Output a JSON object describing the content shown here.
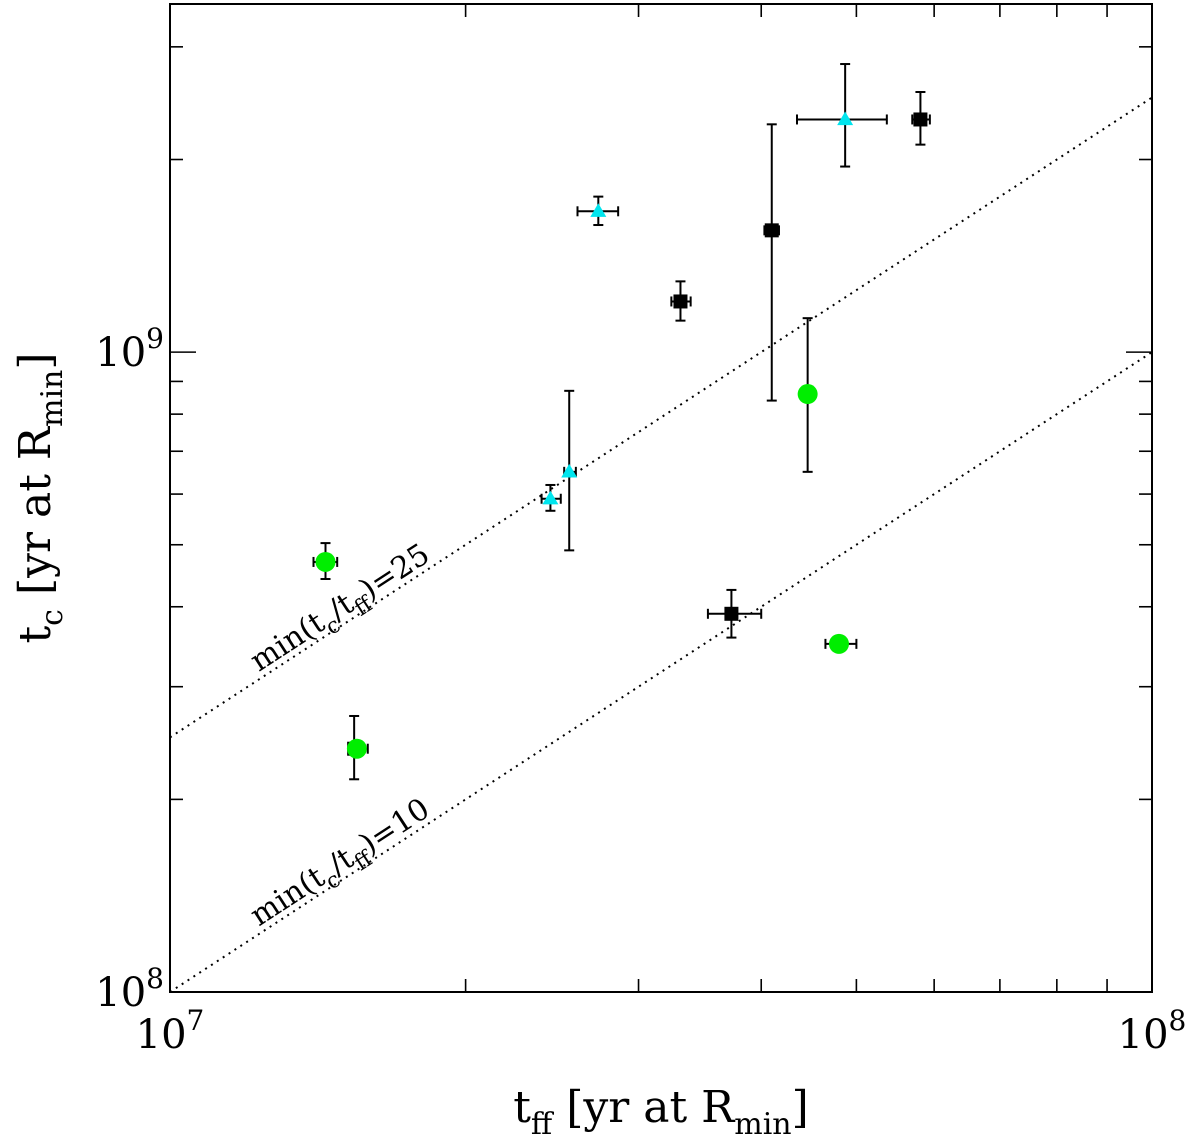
{
  "chart_data": {
    "type": "scatter",
    "xscale": "log",
    "yscale": "log",
    "xlim": [
      10000000,
      100000000
    ],
    "ylim": [
      100000000,
      3500000000
    ],
    "xlabel": {
      "main": "t",
      "sub": "ff",
      "rest": " [yr at R",
      "rsub": "min",
      "close": "]"
    },
    "ylabel": {
      "main": "t",
      "sub": "c",
      "rest": " [yr at R",
      "rsub": "min",
      "close": "]"
    },
    "x_tick_labels": [
      {
        "value": 10000000,
        "base": "10",
        "exp": "7"
      },
      {
        "value": 100000000,
        "base": "10",
        "exp": "8"
      }
    ],
    "y_tick_labels": [
      {
        "value": 100000000,
        "base": "10",
        "exp": "8"
      },
      {
        "value": 1000000000,
        "base": "10",
        "exp": "9"
      }
    ],
    "reference_lines": [
      {
        "ratio": 25,
        "label": {
          "pre": "min(t",
          "s1": "c",
          "mid": "/t",
          "s2": "ff",
          "post": ")=25"
        }
      },
      {
        "ratio": 10,
        "label": {
          "pre": "min(t",
          "s1": "c",
          "mid": "/t",
          "s2": "ff",
          "post": ")=10"
        }
      }
    ],
    "series": [
      {
        "name": "black squares",
        "marker": "square",
        "color": "#000000",
        "points": [
          {
            "x": 15400000,
            "y": 240000000,
            "xlo": 15200000,
            "xhi": 15700000,
            "ylo": 215000000,
            "yhi": 270000000
          },
          {
            "x": 33100000,
            "y": 1200000000,
            "xlo": 32400000,
            "xhi": 33900000,
            "ylo": 1120000000,
            "yhi": 1290000000
          },
          {
            "x": 37300000,
            "y": 390000000,
            "xlo": 35300000,
            "xhi": 40000000,
            "ylo": 358000000,
            "yhi": 425000000
          },
          {
            "x": 41000000,
            "y": 1550000000,
            "xlo": 40300000,
            "xhi": 41700000,
            "ylo": 840000000,
            "yhi": 2270000000
          },
          {
            "x": 58100000,
            "y": 2310000000,
            "xlo": 57000000,
            "xhi": 59400000,
            "ylo": 2110000000,
            "yhi": 2550000000
          }
        ]
      },
      {
        "name": "cyan triangles",
        "marker": "triangle",
        "color": "#00e5ee",
        "points": [
          {
            "x": 24400000,
            "y": 590000000,
            "xlo": 23900000,
            "xhi": 25000000,
            "ylo": 565000000,
            "yhi": 620000000
          },
          {
            "x": 25500000,
            "y": 650000000,
            "xlo": 25200000,
            "xhi": 25900000,
            "ylo": 490000000,
            "yhi": 870000000
          },
          {
            "x": 27300000,
            "y": 1660000000,
            "xlo": 26000000,
            "xhi": 28600000,
            "ylo": 1580000000,
            "yhi": 1750000000
          },
          {
            "x": 48700000,
            "y": 2310000000,
            "xlo": 43500000,
            "xhi": 53700000,
            "ylo": 1950000000,
            "yhi": 2820000000
          }
        ]
      },
      {
        "name": "green circles",
        "marker": "circle",
        "color": "#00ee00",
        "points": [
          {
            "x": 14400000,
            "y": 470000000,
            "xlo": 14000000,
            "xhi": 14800000,
            "ylo": 442000000,
            "yhi": 503000000
          },
          {
            "x": 15500000,
            "y": 240000000,
            "xlo": 15200000,
            "xhi": 15900000,
            "ylo": 240000000,
            "yhi": 240000000
          },
          {
            "x": 44600000,
            "y": 860000000,
            "xlo": 44000000,
            "xhi": 45300000,
            "ylo": 650000000,
            "yhi": 1130000000
          },
          {
            "x": 48000000,
            "y": 350000000,
            "xlo": 46500000,
            "xhi": 50000000,
            "ylo": 350000000,
            "yhi": 350000000
          }
        ]
      }
    ]
  }
}
